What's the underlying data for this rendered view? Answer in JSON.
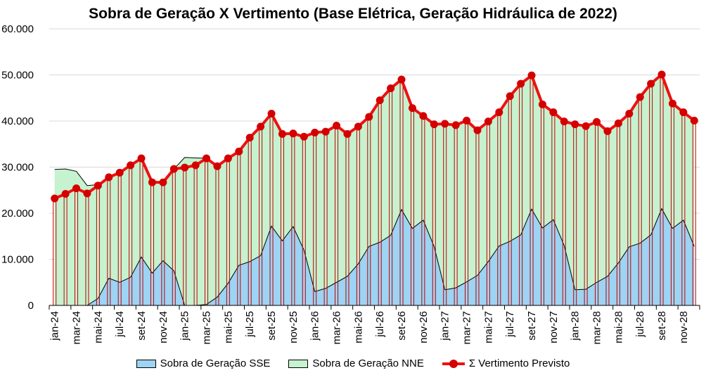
{
  "chart_data": {
    "type": "area",
    "title": "Sobra de Geração X Vertimento (Base Elétrica, Geração Hidráulica de 2022)",
    "ylim": [
      0,
      60000
    ],
    "y_ticks": [
      "0",
      "10.000",
      "20.000",
      "30.000",
      "40.000",
      "50.000",
      "60.000"
    ],
    "y_tick_values": [
      0,
      10000,
      20000,
      30000,
      40000,
      50000,
      60000
    ],
    "x": [
      "jan-24",
      "fev-24",
      "mar-24",
      "abr-24",
      "mai-24",
      "jun-24",
      "jul-24",
      "ago-24",
      "set-24",
      "out-24",
      "nov-24",
      "dez-24",
      "jan-25",
      "fev-25",
      "mar-25",
      "abr-25",
      "mai-25",
      "jun-25",
      "jul-25",
      "ago-25",
      "set-25",
      "out-25",
      "nov-25",
      "dez-25",
      "jan-26",
      "fev-26",
      "mar-26",
      "abr-26",
      "mai-26",
      "jun-26",
      "jul-26",
      "ago-26",
      "set-26",
      "out-26",
      "nov-26",
      "dez-26",
      "jan-27",
      "fev-27",
      "mar-27",
      "abr-27",
      "mai-27",
      "jun-27",
      "jul-27",
      "ago-27",
      "set-27",
      "out-27",
      "nov-27",
      "dez-27",
      "jan-28",
      "fev-28",
      "mar-28",
      "abr-28",
      "mai-28",
      "jun-28",
      "jul-28",
      "ago-28",
      "set-28",
      "out-28",
      "nov-28",
      "dez-28"
    ],
    "x_tick_labels": [
      "jan-24",
      "mar-24",
      "mai-24",
      "jul-24",
      "set-24",
      "nov-24",
      "jan-25",
      "mar-25",
      "mai-25",
      "jul-25",
      "set-25",
      "nov-25",
      "jan-26",
      "mar-26",
      "mai-26",
      "jul-26",
      "set-26",
      "nov-26",
      "jan-27",
      "mar-27",
      "mai-27",
      "jul-27",
      "set-27",
      "nov-27",
      "jan-28",
      "mar-28",
      "mai-28",
      "jul-28",
      "set-28",
      "nov-28"
    ],
    "series": [
      {
        "name": "Sobra de Geração SSE",
        "kind": "area",
        "color": "#9dd3f3",
        "values": [
          0,
          0,
          0,
          0,
          1500,
          5900,
          5000,
          6100,
          10500,
          7000,
          9700,
          7500,
          0,
          0,
          200,
          1800,
          4800,
          8700,
          9500,
          10800,
          17200,
          14000,
          17100,
          12000,
          3000,
          3700,
          5000,
          6300,
          9000,
          12800,
          13700,
          15200,
          20800,
          16700,
          18500,
          12800,
          3400,
          3800,
          5100,
          6500,
          9500,
          12900,
          13900,
          15300,
          20900,
          16800,
          18600,
          13000,
          3400,
          3500,
          5000,
          6300,
          9200,
          12700,
          13500,
          15300,
          21000,
          16700,
          18500,
          12800
        ]
      },
      {
        "name": "Sobra de Geração NNE",
        "kind": "stacked-area",
        "color": "#c6f2cf",
        "values": [
          29500,
          29600,
          29100,
          26000,
          26200,
          27800,
          28800,
          30400,
          31900,
          26700,
          26700,
          29600,
          32100,
          32000,
          31900,
          30200,
          31900,
          33400,
          36400,
          38800,
          41600,
          37200,
          37300,
          36600,
          37500,
          37700,
          39000,
          37200,
          38800,
          40900,
          44500,
          47100,
          49000,
          42800,
          41100,
          39300,
          39400,
          39100,
          40100,
          38000,
          39900,
          41900,
          45400,
          48100,
          49900,
          43600,
          41900,
          39900,
          39300,
          38900,
          39800,
          37800,
          39500,
          41600,
          45200,
          48100,
          50100,
          43800,
          41900,
          40100
        ]
      },
      {
        "name": "Σ Vertimento Previsto",
        "kind": "line",
        "color": "#ee1111",
        "values": [
          23200,
          24200,
          25400,
          24300,
          26000,
          27800,
          28800,
          30400,
          31900,
          26700,
          26700,
          29600,
          29900,
          30400,
          31900,
          30200,
          31900,
          33400,
          36400,
          38800,
          41600,
          37200,
          37300,
          36600,
          37500,
          37700,
          39000,
          37200,
          38800,
          40900,
          44500,
          47100,
          49000,
          42800,
          41100,
          39300,
          39400,
          39100,
          40100,
          38000,
          39900,
          41900,
          45400,
          48100,
          49900,
          43600,
          41900,
          39900,
          39300,
          38900,
          39800,
          37800,
          39500,
          41600,
          45200,
          48100,
          50100,
          43800,
          41900,
          40100
        ]
      }
    ],
    "grid": "horizontal",
    "legend": "bottom"
  },
  "legend": {
    "sse": "Sobra de Geração SSE",
    "nne": "Sobra de Geração NNE",
    "vert": "Σ Vertimento Previsto"
  }
}
